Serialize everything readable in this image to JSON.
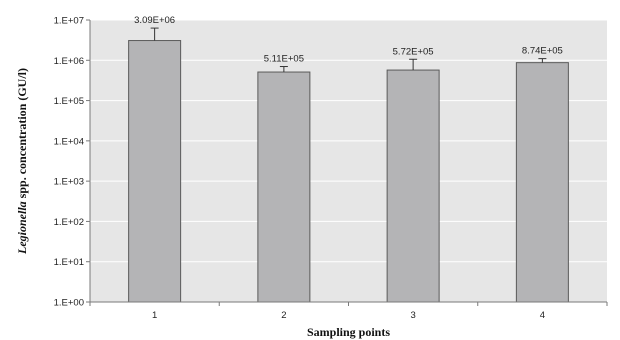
{
  "chart_data": {
    "type": "bar",
    "categories": [
      "1",
      "2",
      "3",
      "4"
    ],
    "values": [
      3090000,
      511000,
      572000,
      874000
    ],
    "data_labels": [
      "3.09E+06",
      "5.11E+05",
      "5.72E+05",
      "8.74E+05"
    ],
    "error_upper": [
      6300000,
      700000,
      1060000,
      1100000
    ],
    "xlabel": "Sampling points",
    "ylabel_italic": "Legionella",
    "ylabel_rest": " spp. concentration (GU/l)",
    "yscale": "log",
    "ylim": [
      1,
      10000000
    ],
    "y_ticks": [
      1,
      10,
      100,
      1000,
      10000,
      100000,
      1000000,
      10000000
    ],
    "y_tick_labels": [
      "1.E+00",
      "1.E+01",
      "1.E+02",
      "1.E+03",
      "1.E+04",
      "1.E+05",
      "1.E+06",
      "1.E+07"
    ],
    "grid": "horizontal major",
    "legend": "none",
    "colors": {
      "plot_background": "#e6e6e6",
      "bar_fill": "#b4b4b6",
      "bar_stroke": "#5a5a5a",
      "gridline": "#ffffff",
      "axis": "#7a7a7a",
      "error_bar": "#333333"
    }
  }
}
